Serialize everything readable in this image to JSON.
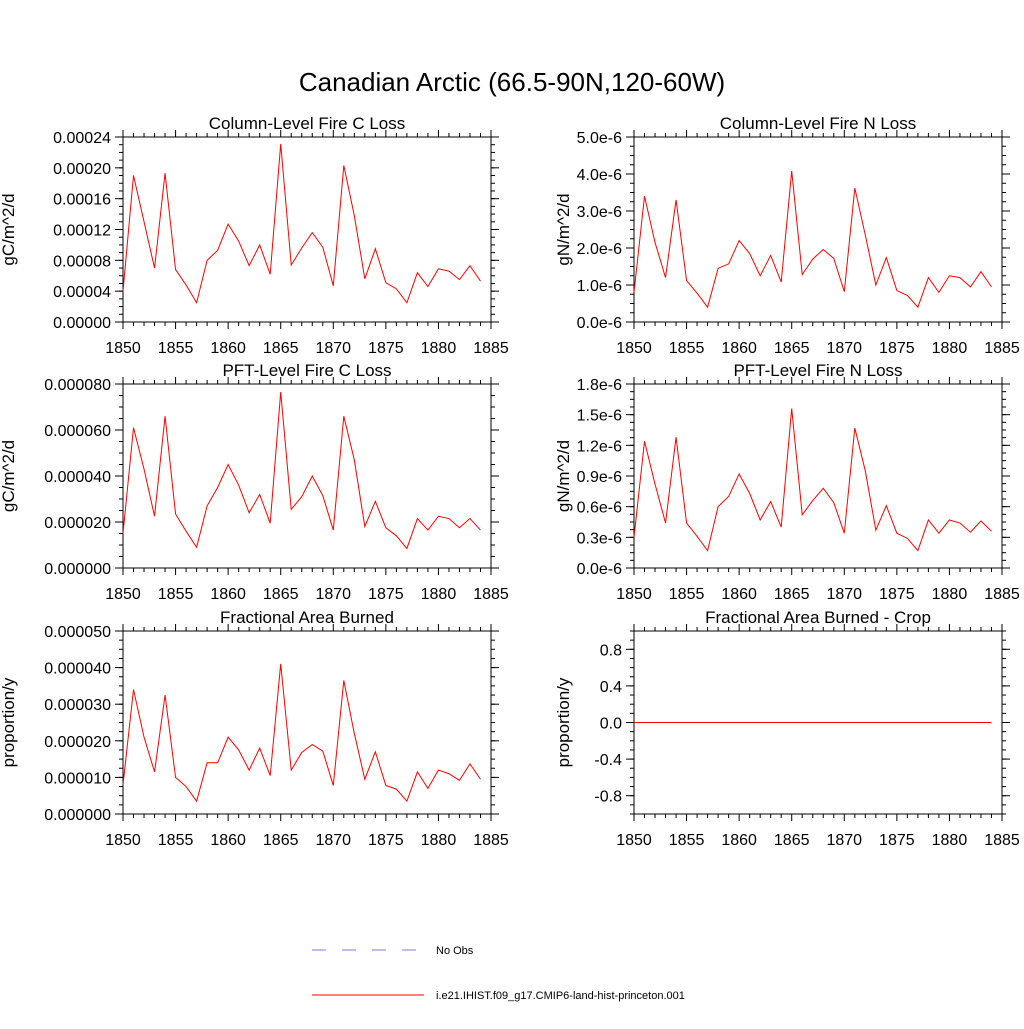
{
  "title": "Canadian Arctic (66.5-90N,120-60W)",
  "colors": {
    "model": "#ff0000",
    "obs": "#7b7bd6",
    "axis": "#000000"
  },
  "legend": {
    "obs_label": "No Obs",
    "model_label": "i.e21.IHIST.f09_g17.CMIP6-land-hist-princeton.001"
  },
  "chart_data": [
    {
      "type": "line",
      "title": "Column-Level Fire C Loss",
      "ylabel": "gC/m^2/d",
      "xlim": [
        1850,
        1885
      ],
      "ylim": [
        0,
        0.00024
      ],
      "xticks": [
        1850,
        1855,
        1860,
        1865,
        1870,
        1875,
        1880,
        1885
      ],
      "yticks": [
        0,
        4e-05,
        8e-05,
        0.00012,
        0.00016,
        0.0002,
        0.00024
      ],
      "ytick_labels": [
        "0.00000",
        "0.00004",
        "0.00008",
        "0.00012",
        "0.00016",
        "0.00020",
        "0.00024"
      ],
      "x": [
        1850,
        1851,
        1852,
        1853,
        1854,
        1855,
        1856,
        1857,
        1858,
        1859,
        1860,
        1861,
        1862,
        1863,
        1864,
        1865,
        1866,
        1867,
        1868,
        1869,
        1870,
        1871,
        1872,
        1873,
        1874,
        1875,
        1876,
        1877,
        1878,
        1879,
        1880,
        1881,
        1882,
        1883,
        1884
      ],
      "series": [
        {
          "values": [
            4e-05,
            0.00019,
            0.00013,
            7e-05,
            0.000193,
            6.8e-05,
            4.8e-05,
            2.5e-05,
            8e-05,
            9.3e-05,
            0.000127,
            0.000105,
            7.3e-05,
            0.0001,
            6.2e-05,
            0.000231,
            7.4e-05,
            9.6e-05,
            0.000116,
            9.7e-05,
            4.7e-05,
            0.000203,
            0.000138,
            5.6e-05,
            9.5e-05,
            5.1e-05,
            4.3e-05,
            2.5e-05,
            6.4e-05,
            4.6e-05,
            6.9e-05,
            6.6e-05,
            5.5e-05,
            7.3e-05,
            5.3e-05
          ]
        }
      ]
    },
    {
      "type": "line",
      "title": "Column-Level Fire N Loss",
      "ylabel": "gN/m^2/d",
      "xlim": [
        1850,
        1885
      ],
      "ylim": [
        0,
        5e-06
      ],
      "xticks": [
        1850,
        1855,
        1860,
        1865,
        1870,
        1875,
        1880,
        1885
      ],
      "yticks": [
        0,
        1e-06,
        2e-06,
        3e-06,
        4e-06,
        5e-06
      ],
      "ytick_labels": [
        "0.0e-6",
        "1.0e-6",
        "2.0e-6",
        "3.0e-6",
        "4.0e-6",
        "5.0e-6"
      ],
      "x": [
        1850,
        1851,
        1852,
        1853,
        1854,
        1855,
        1856,
        1857,
        1858,
        1859,
        1860,
        1861,
        1862,
        1863,
        1864,
        1865,
        1866,
        1867,
        1868,
        1869,
        1870,
        1871,
        1872,
        1873,
        1874,
        1875,
        1876,
        1877,
        1878,
        1879,
        1880,
        1881,
        1882,
        1883,
        1884
      ],
      "series": [
        {
          "values": [
            8e-07,
            3.4e-06,
            2.15e-06,
            1.2e-06,
            3.3e-06,
            1.12e-06,
            7.8e-07,
            4e-07,
            1.45e-06,
            1.57e-06,
            2.2e-06,
            1.85e-06,
            1.25e-06,
            1.8e-06,
            1.08e-06,
            4.08e-06,
            1.28e-06,
            1.7e-06,
            1.96e-06,
            1.72e-06,
            8.2e-07,
            3.62e-06,
            2.35e-06,
            1e-06,
            1.74e-06,
            8.5e-07,
            7.2e-07,
            4e-07,
            1.2e-06,
            8e-07,
            1.25e-06,
            1.2e-06,
            9.5e-07,
            1.36e-06,
            9.5e-07
          ]
        }
      ]
    },
    {
      "type": "line",
      "title": "PFT-Level Fire C Loss",
      "ylabel": "gC/m^2/d",
      "xlim": [
        1850,
        1885
      ],
      "ylim": [
        0,
        8e-05
      ],
      "xticks": [
        1850,
        1855,
        1860,
        1865,
        1870,
        1875,
        1880,
        1885
      ],
      "yticks": [
        0,
        2e-05,
        4e-05,
        6e-05,
        8e-05
      ],
      "ytick_labels": [
        "0.000000",
        "0.000020",
        "0.000040",
        "0.000060",
        "0.000080"
      ],
      "x": [
        1850,
        1851,
        1852,
        1853,
        1854,
        1855,
        1856,
        1857,
        1858,
        1859,
        1860,
        1861,
        1862,
        1863,
        1864,
        1865,
        1866,
        1867,
        1868,
        1869,
        1870,
        1871,
        1872,
        1873,
        1874,
        1875,
        1876,
        1877,
        1878,
        1879,
        1880,
        1881,
        1882,
        1883,
        1884
      ],
      "series": [
        {
          "values": [
            1.5e-05,
            6.1e-05,
            4.3e-05,
            2.25e-05,
            6.6e-05,
            2.35e-05,
            1.6e-05,
            9e-06,
            2.7e-05,
            3.5e-05,
            4.5e-05,
            3.6e-05,
            2.4e-05,
            3.2e-05,
            1.95e-05,
            7.65e-05,
            2.55e-05,
            3.1e-05,
            4e-05,
            3.15e-05,
            1.65e-05,
            6.6e-05,
            4.7e-05,
            1.8e-05,
            2.9e-05,
            1.75e-05,
            1.4e-05,
            8.5e-06,
            2.15e-05,
            1.65e-05,
            2.25e-05,
            2.15e-05,
            1.75e-05,
            2.15e-05,
            1.65e-05
          ]
        }
      ]
    },
    {
      "type": "line",
      "title": "PFT-Level Fire N Loss",
      "ylabel": "gN/m^2/d",
      "xlim": [
        1850,
        1885
      ],
      "ylim": [
        0,
        1.8e-06
      ],
      "xticks": [
        1850,
        1855,
        1860,
        1865,
        1870,
        1875,
        1880,
        1885
      ],
      "yticks": [
        0,
        3e-07,
        6e-07,
        9e-07,
        1.2e-06,
        1.5e-06,
        1.8e-06
      ],
      "ytick_labels": [
        "0.0e-6",
        "0.3e-6",
        "0.6e-6",
        "0.9e-6",
        "1.2e-6",
        "1.5e-6",
        "1.8e-6"
      ],
      "x": [
        1850,
        1851,
        1852,
        1853,
        1854,
        1855,
        1856,
        1857,
        1858,
        1859,
        1860,
        1861,
        1862,
        1863,
        1864,
        1865,
        1866,
        1867,
        1868,
        1869,
        1870,
        1871,
        1872,
        1873,
        1874,
        1875,
        1876,
        1877,
        1878,
        1879,
        1880,
        1881,
        1882,
        1883,
        1884
      ],
      "series": [
        {
          "values": [
            3e-07,
            1.24e-06,
            8.2e-07,
            4.4e-07,
            1.28e-06,
            4.4e-07,
            3.1e-07,
            1.7e-07,
            6e-07,
            7e-07,
            9.2e-07,
            7.3e-07,
            4.7e-07,
            6.5e-07,
            4e-07,
            1.56e-06,
            5.2e-07,
            6.6e-07,
            7.8e-07,
            6.4e-07,
            3.4e-07,
            1.37e-06,
            9.5e-07,
            3.7e-07,
            6.1e-07,
            3.4e-07,
            2.9e-07,
            1.7e-07,
            4.7e-07,
            3.4e-07,
            4.7e-07,
            4.4e-07,
            3.5e-07,
            4.6e-07,
            3.6e-07
          ]
        }
      ]
    },
    {
      "type": "line",
      "title": "Fractional Area Burned",
      "ylabel": "proportion/y",
      "xlim": [
        1850,
        1885
      ],
      "ylim": [
        0,
        5e-05
      ],
      "xticks": [
        1850,
        1855,
        1860,
        1865,
        1870,
        1875,
        1880,
        1885
      ],
      "yticks": [
        0,
        1e-05,
        2e-05,
        3e-05,
        4e-05,
        5e-05
      ],
      "ytick_labels": [
        "0.000000",
        "0.000010",
        "0.000020",
        "0.000030",
        "0.000040",
        "0.000050"
      ],
      "x": [
        1850,
        1851,
        1852,
        1853,
        1854,
        1855,
        1856,
        1857,
        1858,
        1859,
        1860,
        1861,
        1862,
        1863,
        1864,
        1865,
        1866,
        1867,
        1868,
        1869,
        1870,
        1871,
        1872,
        1873,
        1874,
        1875,
        1876,
        1877,
        1878,
        1879,
        1880,
        1881,
        1882,
        1883,
        1884
      ],
      "series": [
        {
          "values": [
            8e-06,
            3.4e-05,
            2.1e-05,
            1.15e-05,
            3.25e-05,
            1e-05,
            7.5e-06,
            3.5e-06,
            1.4e-05,
            1.4e-05,
            2.1e-05,
            1.75e-05,
            1.2e-05,
            1.8e-05,
            1.05e-05,
            4.1e-05,
            1.2e-05,
            1.68e-05,
            1.9e-05,
            1.72e-05,
            7.8e-06,
            3.65e-05,
            2.2e-05,
            9.5e-06,
            1.7e-05,
            7.8e-06,
            6.8e-06,
            3.5e-06,
            1.15e-05,
            7e-06,
            1.2e-05,
            1.1e-05,
            9.2e-06,
            1.37e-05,
            9.5e-06
          ]
        }
      ]
    },
    {
      "type": "line",
      "title": "Fractional Area Burned - Crop",
      "ylabel": "proportion/y",
      "xlim": [
        1850,
        1885
      ],
      "ylim": [
        -1.0,
        1.0
      ],
      "xticks": [
        1850,
        1855,
        1860,
        1865,
        1870,
        1875,
        1880,
        1885
      ],
      "yticks": [
        -0.8,
        -0.4,
        0.0,
        0.4,
        0.8
      ],
      "ytick_labels": [
        "-0.8",
        "-0.4",
        "0.0",
        "0.4",
        "0.8"
      ],
      "x": [
        1850,
        1851,
        1852,
        1853,
        1854,
        1855,
        1856,
        1857,
        1858,
        1859,
        1860,
        1861,
        1862,
        1863,
        1864,
        1865,
        1866,
        1867,
        1868,
        1869,
        1870,
        1871,
        1872,
        1873,
        1874,
        1875,
        1876,
        1877,
        1878,
        1879,
        1880,
        1881,
        1882,
        1883,
        1884
      ],
      "series": [
        {
          "values": [
            0,
            0,
            0,
            0,
            0,
            0,
            0,
            0,
            0,
            0,
            0,
            0,
            0,
            0,
            0,
            0,
            0,
            0,
            0,
            0,
            0,
            0,
            0,
            0,
            0,
            0,
            0,
            0,
            0,
            0,
            0,
            0,
            0,
            0,
            0
          ]
        }
      ]
    }
  ]
}
